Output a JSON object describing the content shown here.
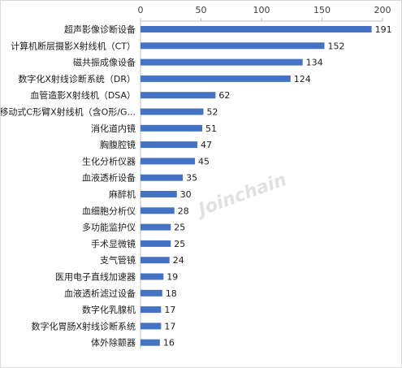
{
  "chart_data": {
    "type": "bar",
    "orientation": "horizontal",
    "title": "",
    "xlabel": "",
    "ylabel": "",
    "xlim": [
      0,
      200
    ],
    "x_ticks": [
      0,
      50,
      100,
      150,
      200
    ],
    "x_axis_position": "top",
    "grid": false,
    "legend": "none",
    "bar_color": "#4472C4",
    "watermark": "Joinchain",
    "categories": [
      "超声影像诊断设备",
      "计算机断层摄影X射线机（CT）",
      "磁共振成像设备",
      "数字化X射线诊断系统（DR）",
      "血管造影X射线机（DSA）",
      "移动式C形臂X射线机（含O形/G...",
      "消化道内镜",
      "胸腹腔镜",
      "生化分析仪器",
      "血液透析设备",
      "麻醉机",
      "血细胞分析仪",
      "多功能监护仪",
      "手术显微镜",
      "支气管镜",
      "医用电子直线加速器",
      "血液透析滤过设备",
      "数字化乳腺机",
      "数字化胃肠X射线诊断系统",
      "体外除颤器"
    ],
    "values": [
      191,
      152,
      134,
      124,
      62,
      52,
      51,
      47,
      45,
      35,
      30,
      28,
      25,
      25,
      24,
      19,
      18,
      17,
      17,
      16
    ]
  }
}
